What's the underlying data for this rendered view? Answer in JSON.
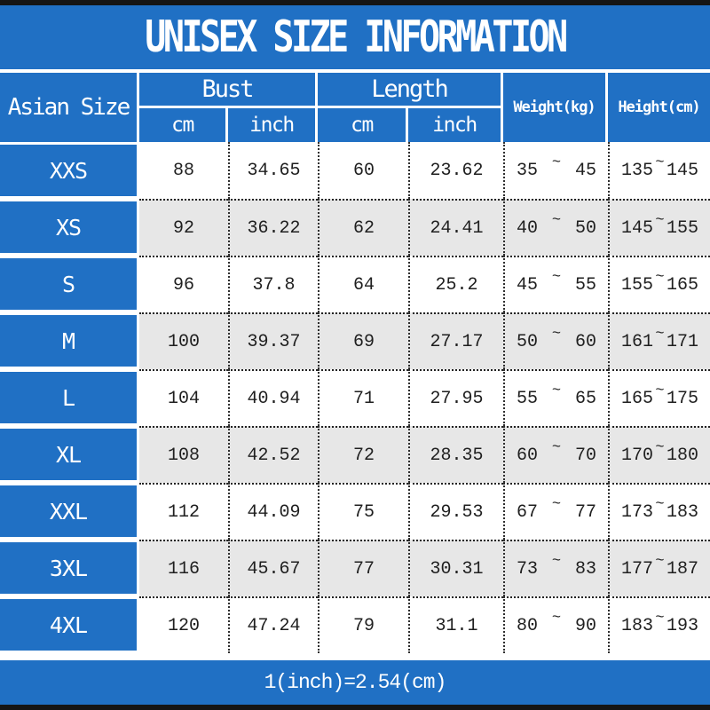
{
  "title": "UNISEX SIZE INFORMATION",
  "header": {
    "asian_size": "Asian Size",
    "bust": "Bust",
    "length": "Length",
    "weight": "Weight(kg)",
    "height": "Height(cm)",
    "bust_cm": "cm",
    "bust_inch": "inch",
    "length_cm": "cm",
    "length_inch": "inch"
  },
  "tilde": "~",
  "rows": [
    {
      "size": "XXS",
      "bust_cm": "88",
      "bust_inch": "34.65",
      "length_cm": "60",
      "length_inch": "23.62",
      "weight_low": "35",
      "weight_high": "45",
      "height_low": "135",
      "height_high": "145"
    },
    {
      "size": "XS",
      "bust_cm": "92",
      "bust_inch": "36.22",
      "length_cm": "62",
      "length_inch": "24.41",
      "weight_low": "40",
      "weight_high": "50",
      "height_low": "145",
      "height_high": "155"
    },
    {
      "size": "S",
      "bust_cm": "96",
      "bust_inch": "37.8",
      "length_cm": "64",
      "length_inch": "25.2",
      "weight_low": "45",
      "weight_high": "55",
      "height_low": "155",
      "height_high": "165"
    },
    {
      "size": "M",
      "bust_cm": "100",
      "bust_inch": "39.37",
      "length_cm": "69",
      "length_inch": "27.17",
      "weight_low": "50",
      "weight_high": "60",
      "height_low": "161",
      "height_high": "171"
    },
    {
      "size": "L",
      "bust_cm": "104",
      "bust_inch": "40.94",
      "length_cm": "71",
      "length_inch": "27.95",
      "weight_low": "55",
      "weight_high": "65",
      "height_low": "165",
      "height_high": "175"
    },
    {
      "size": "XL",
      "bust_cm": "108",
      "bust_inch": "42.52",
      "length_cm": "72",
      "length_inch": "28.35",
      "weight_low": "60",
      "weight_high": "70",
      "height_low": "170",
      "height_high": "180"
    },
    {
      "size": "XXL",
      "bust_cm": "112",
      "bust_inch": "44.09",
      "length_cm": "75",
      "length_inch": "29.53",
      "weight_low": "67",
      "weight_high": "77",
      "height_low": "173",
      "height_high": "183"
    },
    {
      "size": "3XL",
      "bust_cm": "116",
      "bust_inch": "45.67",
      "length_cm": "77",
      "length_inch": "30.31",
      "weight_low": "73",
      "weight_high": "83",
      "height_low": "177",
      "height_high": "187"
    },
    {
      "size": "4XL",
      "bust_cm": "120",
      "bust_inch": "47.24",
      "length_cm": "79",
      "length_inch": "31.1",
      "weight_low": "80",
      "weight_high": "90",
      "height_low": "183",
      "height_high": "193"
    }
  ],
  "footer": "1(inch)=2.54(cm)",
  "colors": {
    "blue": "#2070c4",
    "row_alt_gray": "#e7e7e7",
    "bar_black": "#151515",
    "text_dark": "#1f1f1f"
  }
}
